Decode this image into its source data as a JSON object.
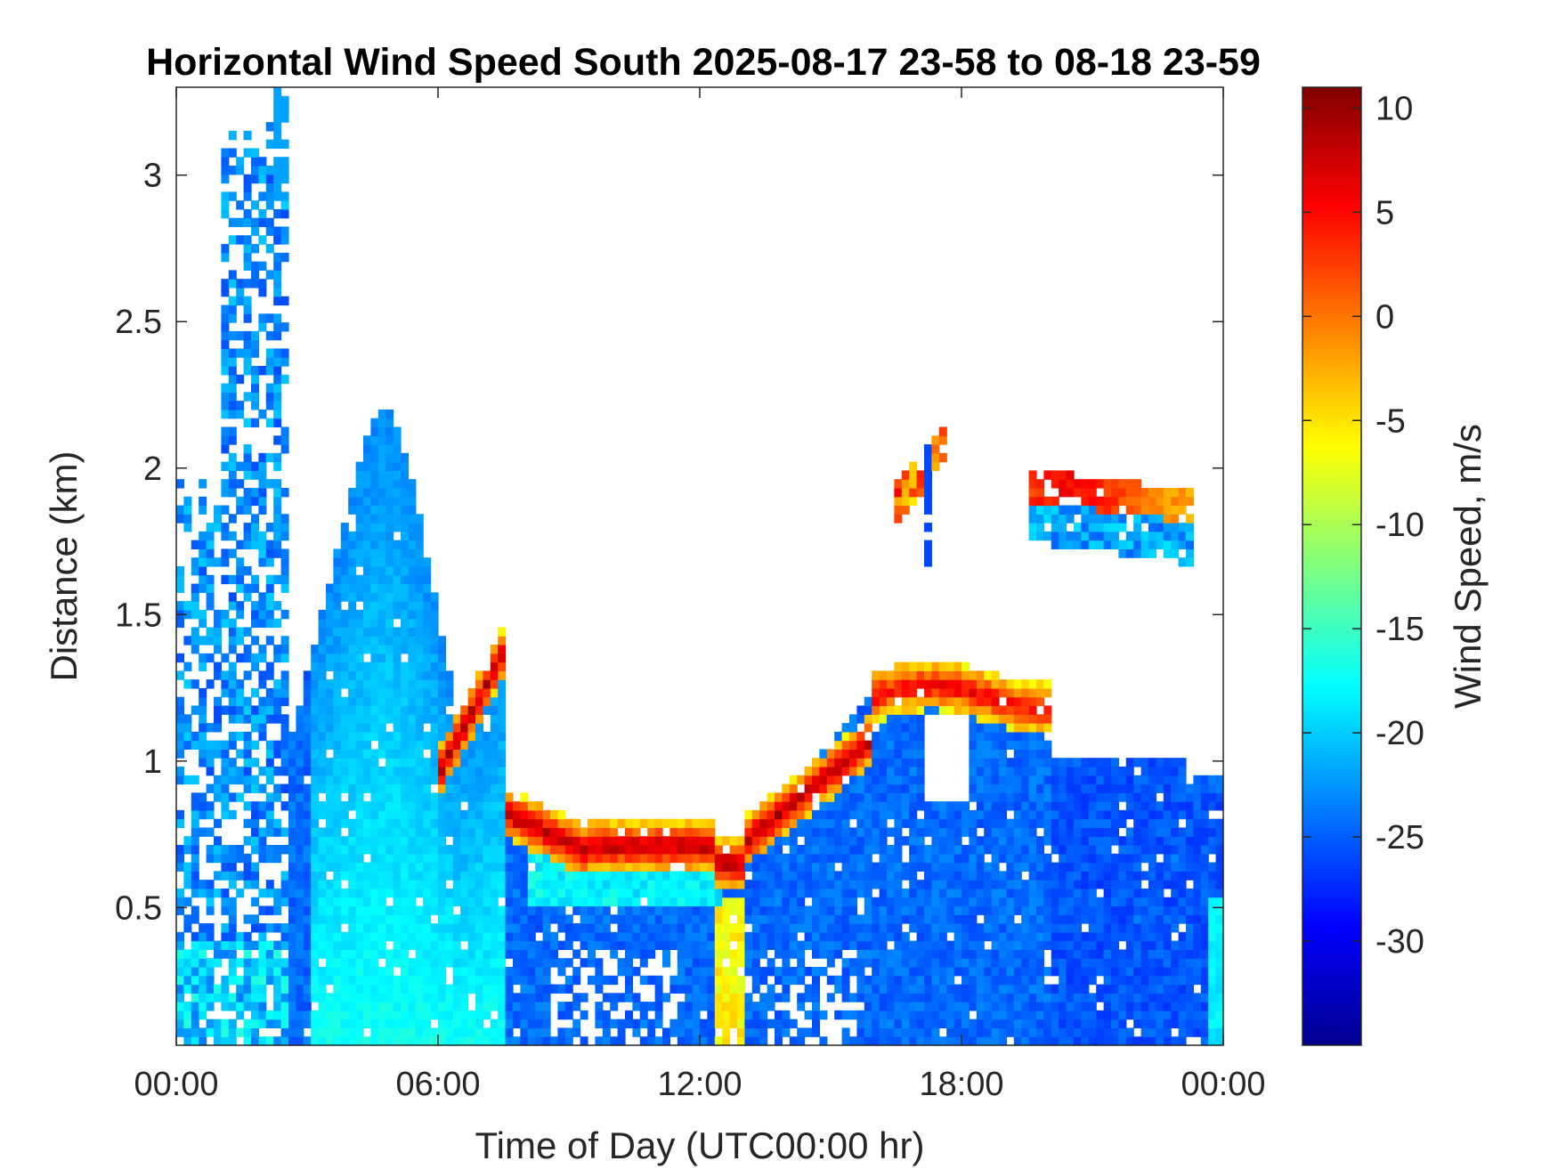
{
  "chart_data": {
    "type": "heatmap",
    "title": "Horizontal Wind Speed South 2025-08-17 23-58 to 08-18 23-59",
    "xlabel": "Time of Day (UTC00:00 hr)",
    "ylabel": "Distance (km)",
    "xlim_hours": [
      0,
      24
    ],
    "ylim_km": [
      0.03,
      3.3
    ],
    "x_ticks": [
      {
        "value": 0,
        "label": "00:00"
      },
      {
        "value": 6,
        "label": "06:00"
      },
      {
        "value": 12,
        "label": "12:00"
      },
      {
        "value": 18,
        "label": "18:00"
      },
      {
        "value": 24,
        "label": "00:00"
      }
    ],
    "y_ticks": [
      {
        "value": 0.5,
        "label": "0.5"
      },
      {
        "value": 1,
        "label": "1"
      },
      {
        "value": 1.5,
        "label": "1.5"
      },
      {
        "value": 2,
        "label": "2"
      },
      {
        "value": 2.5,
        "label": "2.5"
      },
      {
        "value": 3,
        "label": "3"
      }
    ],
    "colorbar": {
      "label": "Wind Speed, m/s",
      "range": [
        -35,
        11
      ],
      "colormap": "jet",
      "ticks": [
        {
          "value": 10,
          "label": "10"
        },
        {
          "value": 5,
          "label": "5"
        },
        {
          "value": 0,
          "label": "0"
        },
        {
          "value": -5,
          "label": "-5"
        },
        {
          "value": -10,
          "label": "-10"
        },
        {
          "value": -15,
          "label": "-15"
        },
        {
          "value": -20,
          "label": "-20"
        },
        {
          "value": -25,
          "label": "-25"
        },
        {
          "value": -30,
          "label": "-30"
        }
      ]
    },
    "grid": false,
    "regions": [
      {
        "name": "early-morning-plume",
        "t_range": [
          0.0,
          2.5
        ],
        "d_range": [
          0.03,
          3.3
        ],
        "typical_value": -24,
        "core_value": -26
      },
      {
        "name": "morning-mixed-layer",
        "t_range": [
          2.5,
          7.6
        ],
        "d_range": [
          0.03,
          2.3
        ],
        "typical_value": -23,
        "core_value": -19
      },
      {
        "name": "midday-jet-layer",
        "t_range": [
          7.6,
          16.0
        ],
        "d_range": [
          0.6,
          0.85
        ],
        "typical_value": 5,
        "core_value": 9
      },
      {
        "name": "afternoon-layer",
        "t_range": [
          16.0,
          20.0
        ],
        "d_range": [
          1.1,
          1.35
        ],
        "typical_value": 4,
        "core_value": 8
      },
      {
        "name": "evening-elevated-layer",
        "t_range": [
          19.5,
          23.5
        ],
        "d_range": [
          1.75,
          2.0
        ],
        "typical_value": -22,
        "core_value": 5
      },
      {
        "name": "evening-boundary-layer",
        "t_range": [
          15.0,
          24.0
        ],
        "d_range": [
          0.03,
          1.0
        ],
        "typical_value": -26,
        "core_value": -24
      },
      {
        "name": "isolated-cloud-return",
        "t_range": [
          16.5,
          17.6
        ],
        "d_range": [
          1.8,
          2.15
        ],
        "typical_value": -5,
        "core_value": 6
      }
    ]
  }
}
